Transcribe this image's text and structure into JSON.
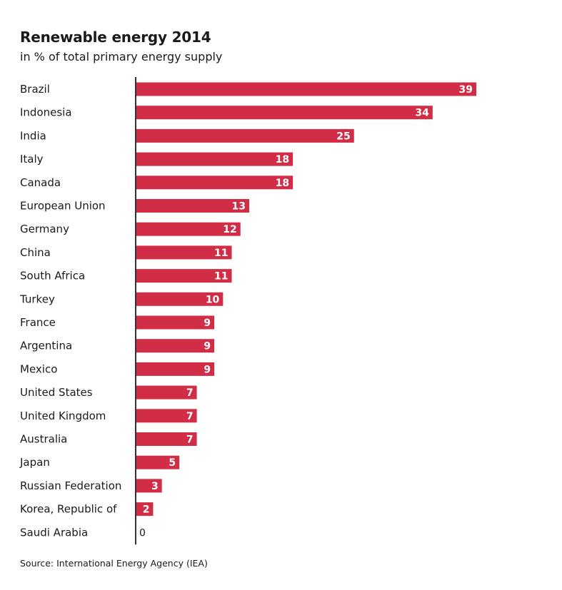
{
  "chart_data": {
    "type": "bar",
    "orientation": "horizontal",
    "title": "Renewable energy 2014",
    "subtitle": "in % of total primary energy supply",
    "source": "Source: International Energy Agency (IEA)",
    "categories": [
      "Brazil",
      "Indonesia",
      "India",
      "Italy",
      "Canada",
      "European Union",
      "Germany",
      "China",
      "South Africa",
      "Turkey",
      "France",
      "Argentina",
      "Mexico",
      "United States",
      "United Kingdom",
      "Australia",
      "Japan",
      "Russian Federation",
      "Korea, Republic of",
      "Saudi Arabia"
    ],
    "values": [
      39,
      34,
      25,
      18,
      18,
      13,
      12,
      11,
      11,
      10,
      9,
      9,
      9,
      7,
      7,
      7,
      5,
      3,
      2,
      0
    ],
    "xlim": [
      0,
      39
    ],
    "grid": false,
    "legend": "none",
    "bar_color": "#d12d46",
    "axis_color": "#333333"
  }
}
